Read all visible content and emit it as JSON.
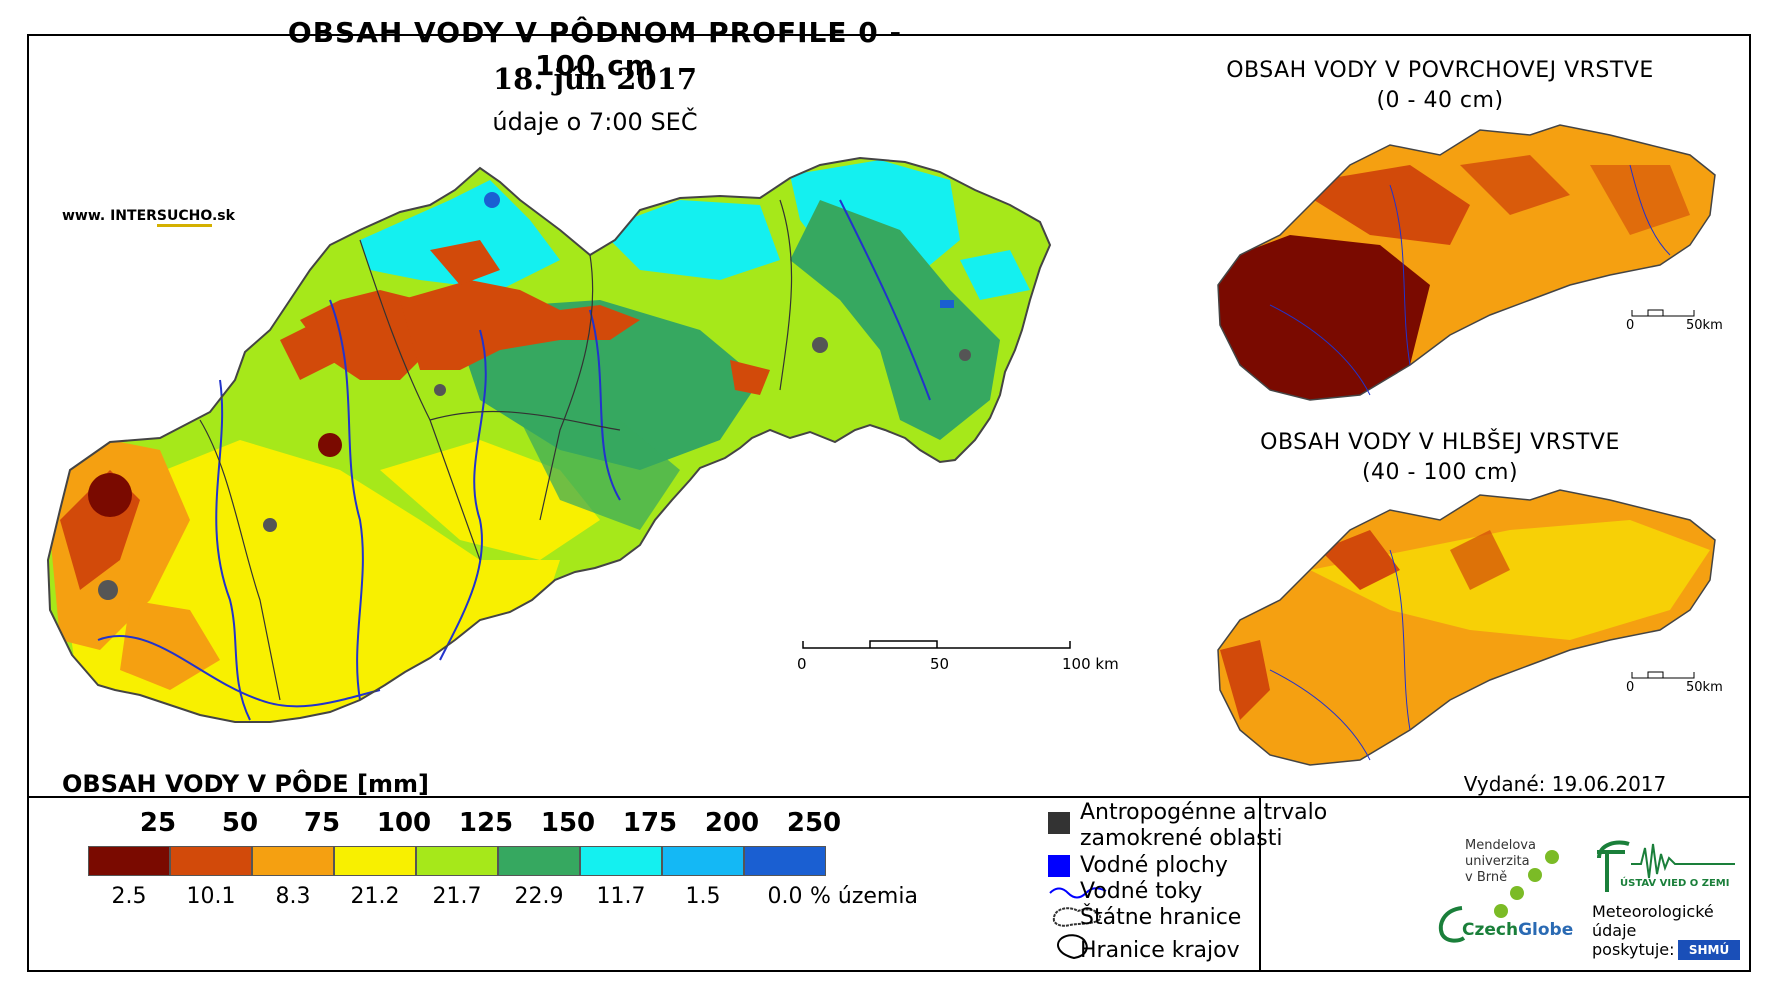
{
  "main_map": {
    "title": "OBSAH VODY V PÔDNOM PROFILE 0 - 100 cm",
    "date": "18. jún 2017",
    "subtitle": "údaje o 7:00 SEČ",
    "website_prefix": "www. INTER",
    "website_highlight": "SUCHO",
    "website_suffix": ".sk",
    "scale": [
      "0",
      "50",
      "100 km"
    ]
  },
  "inset_surface": {
    "title": "OBSAH VODY V POVRCHOVEJ VRSTVE",
    "subtitle": "(0 - 40 cm)",
    "scale": [
      "0",
      "50km"
    ]
  },
  "inset_deep": {
    "title": "OBSAH VODY V HLBŠEJ VRSTVE",
    "subtitle": "(40 - 100 cm)",
    "scale": [
      "0",
      "50km"
    ]
  },
  "legend": {
    "title": "OBSAH VODY V PÔDE [mm]",
    "thresholds": [
      "25",
      "50",
      "75",
      "100",
      "125",
      "150",
      "175",
      "200",
      "250"
    ],
    "classes": [
      {
        "color": "#7a0a00",
        "percent": "2.5"
      },
      {
        "color": "#d24a0a",
        "percent": "10.1"
      },
      {
        "color": "#f5a011",
        "percent": "8.3"
      },
      {
        "color": "#f8f000",
        "percent": "21.2"
      },
      {
        "color": "#a6e81a",
        "percent": "21.7"
      },
      {
        "color": "#36a860",
        "percent": "22.9"
      },
      {
        "color": "#14f0f0",
        "percent": "11.7"
      },
      {
        "color": "#14b8f5",
        "percent": "1.5"
      },
      {
        "color": "#1a5fd2",
        "percent": "0.0"
      }
    ],
    "unit": "% územia"
  },
  "key": {
    "urban": "Antropogénne a trvalo",
    "urban2": "zamokrené oblasti",
    "water_areas": "Vodné plochy",
    "rivers": "Vodné toky",
    "state_border": "Štátne hranice",
    "region_border": "Hranice krajov"
  },
  "info": {
    "issued": "Vydané: 19.06.2017",
    "mendel": [
      "Mendelova",
      "univerzita",
      "v Brně"
    ],
    "czechglobe_a": "Czech",
    "czechglobe_b": "Globe",
    "uvz": "ÚSTAV VIED O ZEMI",
    "meteo": [
      "Meteorologické",
      "údaje",
      "poskytuje:"
    ],
    "shmu": "SHMÚ"
  }
}
